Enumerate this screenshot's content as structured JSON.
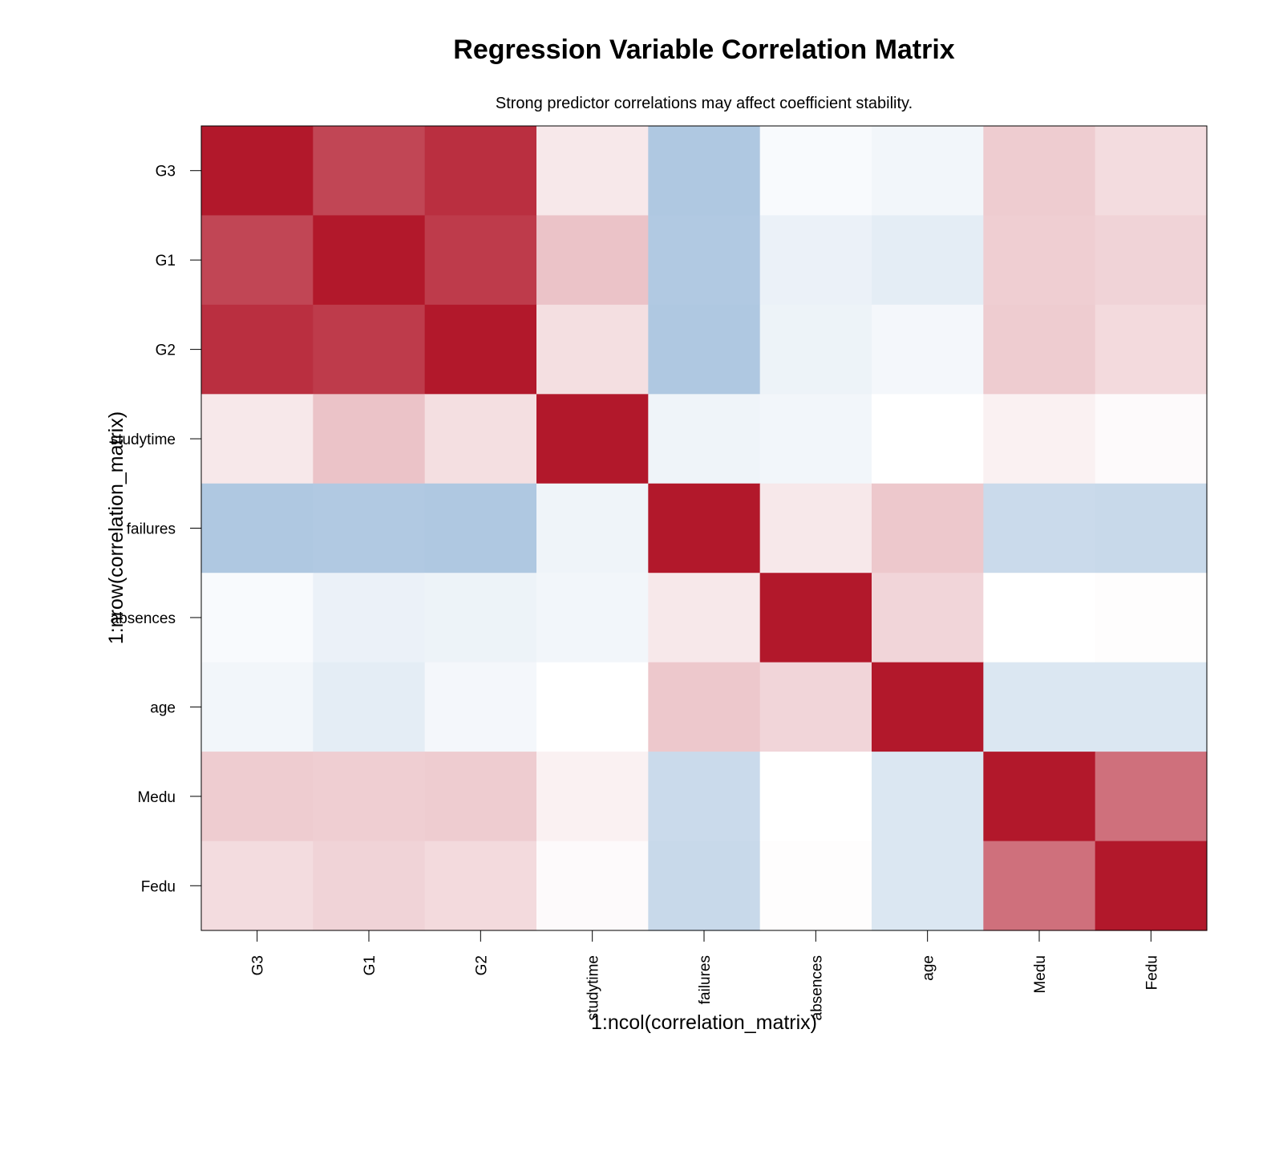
{
  "chart_data": {
    "type": "heatmap",
    "title": "Regression Variable Correlation Matrix",
    "subtitle": "Strong predictor correlations may affect coefficient stability.",
    "xlabel": "1:ncol(correlation_matrix)",
    "ylabel": "1:nrow(correlation_matrix)",
    "x_categories": [
      "G3",
      "G1",
      "G2",
      "studytime",
      "failures",
      "absences",
      "age",
      "Medu",
      "Fedu"
    ],
    "y_categories": [
      "G3",
      "G1",
      "G2",
      "studytime",
      "failures",
      "absences",
      "age",
      "Medu",
      "Fedu"
    ],
    "value_range": [
      -1,
      1
    ],
    "colors": {
      "negative": "#2166ac",
      "neutral": "#ffffff",
      "positive": "#b2182b",
      "frame": "#000000"
    },
    "values": [
      [
        1.0,
        0.8,
        0.9,
        0.1,
        -0.36,
        -0.03,
        -0.06,
        0.22,
        0.15
      ],
      [
        0.8,
        1.0,
        0.85,
        0.26,
        -0.35,
        -0.09,
        -0.12,
        0.21,
        0.19
      ],
      [
        0.9,
        0.85,
        1.0,
        0.14,
        -0.36,
        -0.08,
        -0.05,
        0.22,
        0.16
      ],
      [
        0.1,
        0.26,
        0.14,
        1.0,
        -0.07,
        -0.06,
        0.0,
        0.06,
        0.02
      ],
      [
        -0.36,
        -0.35,
        -0.36,
        -0.07,
        1.0,
        0.1,
        0.24,
        -0.24,
        -0.25
      ],
      [
        -0.03,
        -0.09,
        -0.08,
        -0.06,
        0.1,
        1.0,
        0.18,
        0.0,
        0.01
      ],
      [
        -0.06,
        -0.12,
        -0.05,
        0.0,
        0.24,
        0.18,
        1.0,
        -0.16,
        -0.16
      ],
      [
        0.22,
        0.21,
        0.22,
        0.06,
        -0.24,
        0.0,
        -0.16,
        1.0,
        0.62
      ],
      [
        0.15,
        0.19,
        0.16,
        0.02,
        -0.25,
        0.01,
        -0.16,
        0.62,
        1.0
      ]
    ]
  }
}
